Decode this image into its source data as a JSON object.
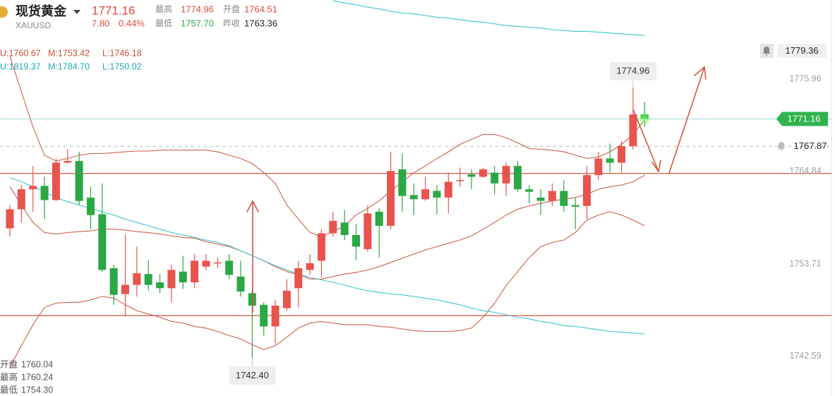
{
  "header": {
    "name": "现货黄金",
    "symbol": "XAUUSD",
    "price": "1771.16",
    "change": "7.80",
    "change_pct": "0.44%",
    "stats": [
      {
        "label": "最高",
        "value": "1774.96"
      },
      {
        "label": "开盘",
        "value": "1764.51"
      },
      {
        "label": "最低",
        "value": "1757.70"
      },
      {
        "label": "昨收",
        "value": "1763.36"
      }
    ]
  },
  "indicators": [
    [
      "U:1760.67",
      "M:1753.42",
      "L:1746.18"
    ],
    [
      "U:1819.37",
      "M:1784.70",
      "L:1750.02"
    ]
  ],
  "hover": [
    {
      "label": "开盘",
      "value": "1760.04"
    },
    {
      "label": "最高",
      "value": "1760.24"
    },
    {
      "label": "最低",
      "value": "1754.30"
    }
  ],
  "chart_data": {
    "type": "candlestick",
    "up_color": "#e8544d",
    "down_color": "#2aa845",
    "ylim": [
      1737.83,
      1785.47
    ],
    "yticks": [
      1775.96,
      1764.84,
      1753.71,
      1742.59
    ],
    "open": [
      1758.0,
      1760.3,
      1762.7,
      1763.1,
      1761.4,
      1765.9,
      1766.1,
      1761.7,
      1759.7,
      1753.2,
      1750.1,
      1751.2,
      1752.5,
      1751.5,
      1750.8,
      1752.8,
      1751.5,
      1753.4,
      1753.8,
      1754.1,
      1752.2,
      1750.2,
      1748.8,
      1746.2,
      1748.4,
      1750.8,
      1753.0,
      1754.1,
      1757.4,
      1758.7,
      1757.2,
      1755.5,
      1760.0,
      1758.3,
      1765.1,
      1762.0,
      1761.5,
      1762.5,
      1761.7,
      1763.7,
      1764.5,
      1764.2,
      1764.7,
      1763.4,
      1765.5,
      1762.7,
      1761.7,
      1761.3,
      1762.5,
      1760.8,
      1760.7,
      1764.4,
      1766.4,
      1765.9,
      1767.9,
      1771.7
    ],
    "high": [
      1760.8,
      1763.2,
      1765.5,
      1764.2,
      1766.4,
      1767.5,
      1767.2,
      1763.0,
      1763.4,
      1753.6,
      1757.3,
      1755.8,
      1754.2,
      1752.5,
      1753.6,
      1754.7,
      1754.9,
      1754.9,
      1754.5,
      1754.9,
      1754.1,
      1750.7,
      1749.1,
      1749.4,
      1751.9,
      1754.1,
      1754.9,
      1757.9,
      1760.0,
      1760.2,
      1758.5,
      1760.8,
      1760.4,
      1767.2,
      1767.0,
      1763.4,
      1764.2,
      1763.2,
      1764.7,
      1765.3,
      1765.1,
      1765.3,
      1765.5,
      1765.9,
      1766.1,
      1763.2,
      1762.7,
      1763.4,
      1763.8,
      1761.7,
      1765.5,
      1767.2,
      1768.2,
      1768.5,
      1774.96,
      1773.2
    ],
    "low": [
      1757.0,
      1758.7,
      1760.0,
      1759.1,
      1761.3,
      1765.8,
      1760.8,
      1757.9,
      1752.8,
      1748.8,
      1747.4,
      1749.8,
      1750.5,
      1750.2,
      1749.1,
      1750.7,
      1750.8,
      1753.0,
      1753.2,
      1751.9,
      1749.8,
      1742.4,
      1745.1,
      1744.1,
      1748.1,
      1748.5,
      1752.4,
      1752.1,
      1757.0,
      1756.6,
      1754.2,
      1755.2,
      1754.5,
      1757.9,
      1760.0,
      1759.6,
      1761.3,
      1759.7,
      1759.8,
      1763.0,
      1762.7,
      1764.1,
      1762.1,
      1761.9,
      1762.4,
      1761.0,
      1759.6,
      1760.7,
      1760.0,
      1757.9,
      1759.1,
      1763.8,
      1764.7,
      1764.7,
      1767.5,
      1770.2
    ],
    "close": [
      1760.3,
      1762.7,
      1763.1,
      1761.4,
      1765.9,
      1766.1,
      1761.3,
      1759.6,
      1753.0,
      1750.0,
      1751.2,
      1752.6,
      1751.2,
      1750.8,
      1753.0,
      1751.5,
      1754.1,
      1754.1,
      1753.9,
      1752.4,
      1750.4,
      1748.7,
      1746.2,
      1748.7,
      1750.5,
      1753.2,
      1753.8,
      1757.4,
      1758.9,
      1757.2,
      1755.8,
      1759.8,
      1758.3,
      1764.9,
      1761.9,
      1761.5,
      1762.7,
      1761.7,
      1763.6,
      1763.8,
      1764.2,
      1765.1,
      1763.4,
      1765.5,
      1762.7,
      1762.4,
      1761.3,
      1762.5,
      1760.7,
      1760.6,
      1764.4,
      1766.4,
      1765.9,
      1767.9,
      1771.7,
      1771.16
    ],
    "overlays": [
      {
        "color": "#d2604a",
        "values": [
          1778.7,
          1774.4,
          1770.2,
          1766.8,
          1766.1,
          1766.4,
          1766.8,
          1767.0,
          1767.0,
          1767.1,
          1767.2,
          1767.3,
          1767.3,
          1767.4,
          1767.4,
          1767.4,
          1767.4,
          1767.4,
          1767.2,
          1766.8,
          1766.4,
          1765.8,
          1764.7,
          1763.4,
          1760.8,
          1759.1,
          1757.5,
          1757.0,
          1757.6,
          1758.3,
          1759.6,
          1760.4,
          1761.3,
          1762.5,
          1763.6,
          1764.7,
          1765.5,
          1766.4,
          1767.2,
          1768.1,
          1768.7,
          1769.3,
          1769.3,
          1768.9,
          1768.3,
          1767.6,
          1767.5,
          1767.4,
          1767.2,
          1766.8,
          1766.4,
          1766.6,
          1767.2,
          1768.1,
          1769.3,
          1771.0
        ]
      },
      {
        "color": "#d2604a",
        "values": [
          1763.0,
          1760.8,
          1758.7,
          1757.5,
          1757.3,
          1757.5,
          1757.6,
          1757.7,
          1757.9,
          1757.9,
          1757.8,
          1757.6,
          1757.5,
          1757.3,
          1757.1,
          1756.9,
          1756.8,
          1756.4,
          1756.1,
          1755.8,
          1755.3,
          1754.7,
          1754.1,
          1753.4,
          1752.8,
          1752.4,
          1751.9,
          1751.9,
          1752.2,
          1752.5,
          1752.7,
          1753.0,
          1753.4,
          1753.9,
          1754.4,
          1754.9,
          1755.4,
          1755.8,
          1756.2,
          1756.6,
          1757.1,
          1757.9,
          1758.7,
          1759.6,
          1760.3,
          1760.7,
          1761.0,
          1761.3,
          1761.5,
          1761.7,
          1762.1,
          1762.7,
          1763.0,
          1763.2,
          1763.6,
          1764.4
        ]
      },
      {
        "color": "#d2604a",
        "values": [
          1741.3,
          1743.9,
          1746.4,
          1748.5,
          1749.0,
          1749.1,
          1749.1,
          1749.4,
          1749.8,
          1749.6,
          1748.8,
          1748.1,
          1747.7,
          1747.3,
          1746.8,
          1746.6,
          1746.2,
          1746.0,
          1745.6,
          1745.1,
          1744.7,
          1744.0,
          1743.4,
          1743.9,
          1744.9,
          1746.0,
          1746.6,
          1746.8,
          1746.6,
          1746.4,
          1746.4,
          1746.4,
          1746.2,
          1746.1,
          1745.9,
          1745.7,
          1745.6,
          1745.6,
          1745.6,
          1745.7,
          1746.0,
          1747.3,
          1749.0,
          1751.1,
          1752.8,
          1754.5,
          1755.8,
          1756.3,
          1756.6,
          1757.5,
          1759.0,
          1759.6,
          1760.0,
          1759.6,
          1759.0,
          1758.3
        ]
      },
      {
        "color": "#3fc5d2",
        "values": [
          1764.1,
          1763.6,
          1763.0,
          1762.4,
          1761.7,
          1761.2,
          1760.8,
          1760.4,
          1760.0,
          1759.6,
          1759.1,
          1758.7,
          1758.3,
          1757.9,
          1757.5,
          1757.2,
          1756.9,
          1756.6,
          1756.3,
          1755.9,
          1755.3,
          1754.7,
          1754.1,
          1753.5,
          1753.0,
          1752.5,
          1752.1,
          1751.8,
          1751.5,
          1751.2,
          1750.8,
          1750.5,
          1750.3,
          1750.1,
          1750.0,
          1749.8,
          1749.6,
          1749.4,
          1749.1,
          1748.8,
          1748.4,
          1748.1,
          1747.9,
          1747.6,
          1747.3,
          1747.1,
          1746.8,
          1746.6,
          1746.3,
          1746.2,
          1746.0,
          1745.8,
          1745.6,
          1745.5,
          1745.4,
          1745.3
        ]
      },
      {
        "color": "#3fc5d2",
        "values": [
          null,
          null,
          null,
          null,
          null,
          null,
          null,
          null,
          null,
          null,
          null,
          null,
          null,
          null,
          null,
          null,
          null,
          null,
          null,
          null,
          null,
          null,
          null,
          null,
          null,
          null,
          null,
          null,
          1785.4,
          1785.1,
          1784.9,
          1784.6,
          1784.4,
          1784.1,
          1783.9,
          1783.8,
          1783.6,
          1783.4,
          1783.3,
          1783.1,
          1782.9,
          1782.8,
          1782.6,
          1782.4,
          1782.3,
          1782.2,
          1782.1,
          1781.9,
          1781.8,
          1781.7,
          1781.7,
          1781.6,
          1781.5,
          1781.4,
          1781.3,
          1781.2
        ]
      }
    ],
    "hlines": [
      {
        "value": 1764.6,
        "color": "#d0573f"
      },
      {
        "value": 1747.5,
        "color": "#d0573f"
      }
    ],
    "alerts": [
      {
        "value": 1779.36,
        "line": false
      },
      {
        "value": 1767.87,
        "line": true
      }
    ],
    "high_marker": {
      "value": 1774.96,
      "label": "1774.96"
    },
    "low_marker": {
      "value": 1742.4,
      "label": "1742.40"
    }
  }
}
